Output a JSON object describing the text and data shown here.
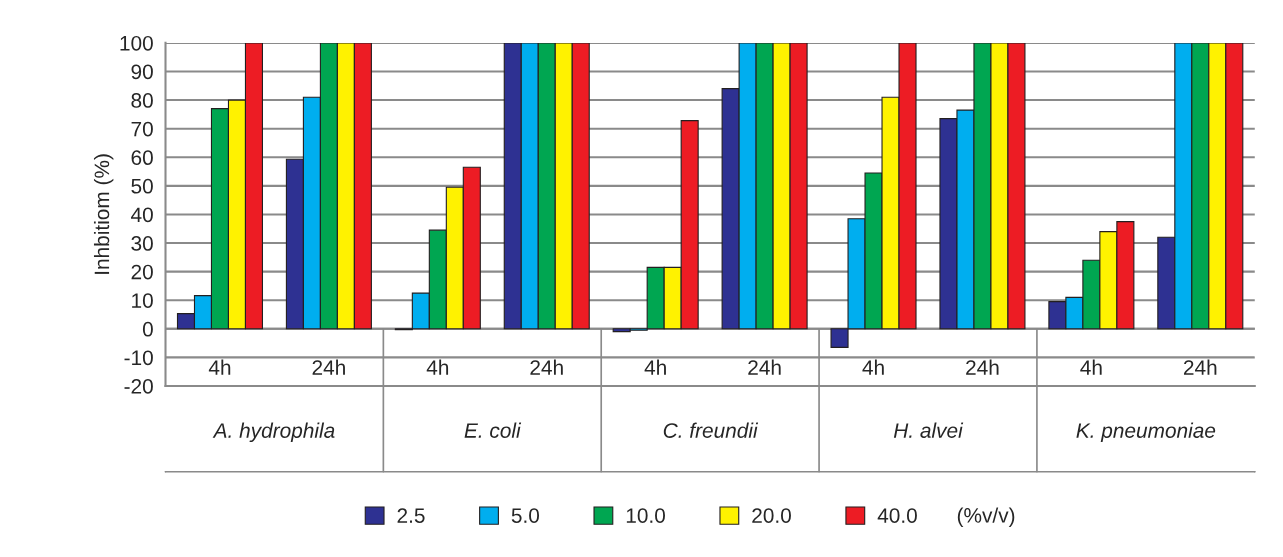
{
  "chart_data": {
    "type": "bar",
    "ylabel": "Inhbitiom (%)",
    "categories": [
      "4h",
      "24h",
      "4h",
      "24h",
      "4h",
      "24h",
      "4h",
      "24h",
      "4h",
      "24h"
    ],
    "series": [
      {
        "name": "2.5",
        "color": "#2e3192",
        "values": [
          5.3,
          59.3,
          -0.3,
          100,
          -1,
          84,
          -6.5,
          73.5,
          9.5,
          32
        ]
      },
      {
        "name": "5.0",
        "color": "#00aeef",
        "values": [
          11.6,
          81,
          12.5,
          100,
          -0.5,
          100,
          38.5,
          76.5,
          11,
          100
        ]
      },
      {
        "name": "10.0",
        "color": "#00a651",
        "values": [
          77,
          100,
          34.5,
          100,
          21.5,
          100,
          54.5,
          100,
          24,
          100
        ]
      },
      {
        "name": "20.0",
        "color": "#fff200",
        "values": [
          80,
          100,
          49.5,
          100,
          21.5,
          100,
          81,
          100,
          34,
          100
        ]
      },
      {
        "name": "40.0",
        "color": "#ed1c24",
        "values": [
          100,
          100,
          56.5,
          100,
          72.8,
          100,
          100,
          100,
          37.5,
          100
        ]
      }
    ],
    "annotations": [
      "A. hydrophila",
      "E. coli",
      "C. freundii",
      "H. alvei",
      "K. pneumoniae"
    ],
    "legend_title": "(%v/v)",
    "ylim": [
      -20,
      100
    ],
    "yticks": [
      -20,
      -10,
      0,
      10,
      20,
      30,
      40,
      50,
      60,
      70,
      80,
      90,
      100
    ],
    "grid": "y",
    "legend": "bottom"
  }
}
